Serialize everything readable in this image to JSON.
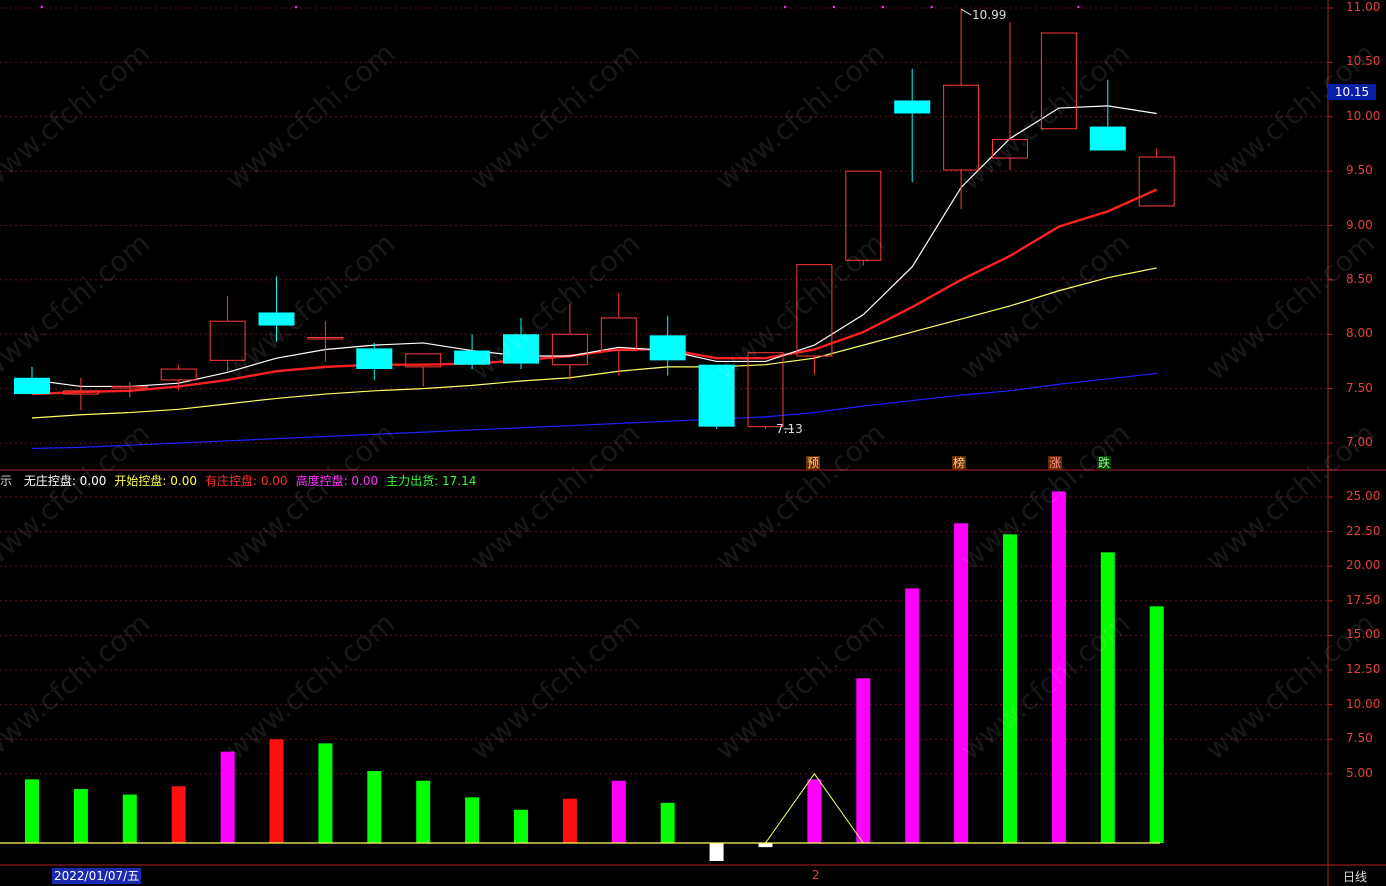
{
  "legend": [
    {
      "label": "示",
      "value": "",
      "color": "#dddddd"
    },
    {
      "label": "无庄控盘:",
      "value": "0.00",
      "color": "#ffffff"
    },
    {
      "label": "开始控盘:",
      "value": "0.00",
      "color": "#ffff40"
    },
    {
      "label": "有庄控盘:",
      "value": "0.00",
      "color": "#ff3030"
    },
    {
      "label": "高度控盘:",
      "value": "0.00",
      "color": "#ff30ff"
    },
    {
      "label": "主力出货:",
      "value": "17.14",
      "color": "#30ff30"
    }
  ],
  "current_price": "10.15",
  "date_label": "2022/01/07/五",
  "period_label": "日线",
  "x_marker": "2",
  "high_annotation": "10.99",
  "low_annotation": "7.13",
  "signals": [
    "预",
    "榜",
    "涨",
    "跌"
  ],
  "watermark": "www.cfchi.com",
  "colors": {
    "up": "#ff3b3b",
    "down": "#00ffff",
    "ma5": "#ffffff",
    "ma10": "#ff2020",
    "ma20": "#ffff66",
    "ma60": "#2020ff"
  },
  "chart_data": [
    {
      "type": "candlestick",
      "title": "",
      "ylim": [
        6.8,
        11.1
      ],
      "yticks": [
        "11.00",
        "10.50",
        "10.00",
        "9.50",
        "9.00",
        "8.50",
        "8.00",
        "7.50",
        "7.00"
      ],
      "candles": [
        {
          "o": 7.6,
          "h": 7.7,
          "l": 7.45,
          "c": 7.45
        },
        {
          "o": 7.45,
          "h": 7.6,
          "l": 7.3,
          "c": 7.48
        },
        {
          "o": 7.52,
          "h": 7.56,
          "l": 7.42,
          "c": 7.52
        },
        {
          "o": 7.58,
          "h": 7.72,
          "l": 7.48,
          "c": 7.68
        },
        {
          "o": 7.76,
          "h": 8.35,
          "l": 7.65,
          "c": 8.12
        },
        {
          "o": 8.2,
          "h": 8.53,
          "l": 7.93,
          "c": 8.08
        },
        {
          "o": 7.97,
          "h": 8.12,
          "l": 7.75,
          "c": 7.97
        },
        {
          "o": 7.87,
          "h": 7.92,
          "l": 7.58,
          "c": 7.68
        },
        {
          "o": 7.7,
          "h": 7.82,
          "l": 7.52,
          "c": 7.82
        },
        {
          "o": 7.85,
          "h": 8.0,
          "l": 7.68,
          "c": 7.72
        },
        {
          "o": 8.0,
          "h": 8.15,
          "l": 7.68,
          "c": 7.73
        },
        {
          "o": 7.72,
          "h": 8.28,
          "l": 7.58,
          "c": 8.0
        },
        {
          "o": 7.85,
          "h": 8.38,
          "l": 7.62,
          "c": 8.15
        },
        {
          "o": 7.99,
          "h": 8.17,
          "l": 7.62,
          "c": 7.76
        },
        {
          "o": 7.72,
          "h": 7.72,
          "l": 7.13,
          "c": 7.15
        },
        {
          "o": 7.15,
          "h": 7.83,
          "l": 7.13,
          "c": 7.83
        },
        {
          "o": 7.8,
          "h": 8.64,
          "l": 7.63,
          "c": 8.64
        },
        {
          "o": 8.68,
          "h": 9.5,
          "l": 8.63,
          "c": 9.5
        },
        {
          "o": 10.15,
          "h": 10.44,
          "l": 9.4,
          "c": 10.03
        },
        {
          "o": 9.51,
          "h": 10.99,
          "l": 9.15,
          "c": 10.29
        },
        {
          "o": 9.62,
          "h": 10.87,
          "l": 9.51,
          "c": 9.79
        },
        {
          "o": 9.89,
          "h": 10.77,
          "l": 9.89,
          "c": 10.77
        },
        {
          "o": 9.91,
          "h": 10.34,
          "l": 9.7,
          "c": 9.69
        },
        {
          "o": 9.18,
          "h": 9.71,
          "l": 9.18,
          "c": 9.63
        }
      ],
      "ma5": [
        7.58,
        7.52,
        7.52,
        7.55,
        7.65,
        7.78,
        7.86,
        7.9,
        7.92,
        7.85,
        7.8,
        7.8,
        7.88,
        7.85,
        7.75,
        7.75,
        7.9,
        8.18,
        8.62,
        9.35,
        9.8,
        10.08,
        10.1,
        10.03
      ],
      "ma10": [
        7.45,
        7.47,
        7.48,
        7.52,
        7.58,
        7.66,
        7.7,
        7.72,
        7.72,
        7.73,
        7.76,
        7.8,
        7.86,
        7.86,
        7.78,
        7.78,
        7.86,
        8.02,
        8.25,
        8.5,
        8.72,
        8.99,
        9.13,
        9.33
      ],
      "ma20": [
        7.23,
        7.26,
        7.28,
        7.31,
        7.36,
        7.41,
        7.45,
        7.48,
        7.5,
        7.53,
        7.57,
        7.6,
        7.66,
        7.7,
        7.7,
        7.72,
        7.78,
        7.9,
        8.02,
        8.14,
        8.26,
        8.4,
        8.52,
        8.61
      ],
      "ma60": [
        6.95,
        6.96,
        6.98,
        7.0,
        7.02,
        7.04,
        7.06,
        7.08,
        7.1,
        7.12,
        7.14,
        7.16,
        7.18,
        7.2,
        7.22,
        7.24,
        7.28,
        7.34,
        7.39,
        7.44,
        7.48,
        7.54,
        7.59,
        7.64
      ]
    },
    {
      "type": "bar",
      "title": "",
      "ylim": [
        -1.5,
        27
      ],
      "yticks": [
        "25.00",
        "22.50",
        "20.00",
        "17.50",
        "15.00",
        "12.50",
        "10.00",
        "7.50",
        "5.00"
      ],
      "values": [
        4.6,
        3.9,
        3.5,
        4.1,
        6.6,
        7.5,
        7.2,
        5.2,
        4.5,
        3.3,
        2.4,
        3.2,
        4.5,
        2.9,
        -1.3,
        -0.3,
        4.6,
        11.9,
        18.4,
        23.1,
        22.3,
        25.4,
        21.0,
        17.1
      ],
      "series_colors": [
        "green",
        "green",
        "green",
        "red",
        "magenta",
        "red",
        "green",
        "green",
        "green",
        "green",
        "green",
        "red",
        "magenta",
        "green",
        "white",
        "white",
        "magenta",
        "magenta",
        "magenta",
        "magenta",
        "green",
        "magenta",
        "green",
        "green"
      ],
      "line": [
        null,
        null,
        null,
        null,
        null,
        null,
        null,
        null,
        null,
        null,
        null,
        null,
        null,
        null,
        null,
        0,
        5.0,
        0,
        null,
        null,
        null,
        null,
        null,
        null
      ]
    }
  ]
}
